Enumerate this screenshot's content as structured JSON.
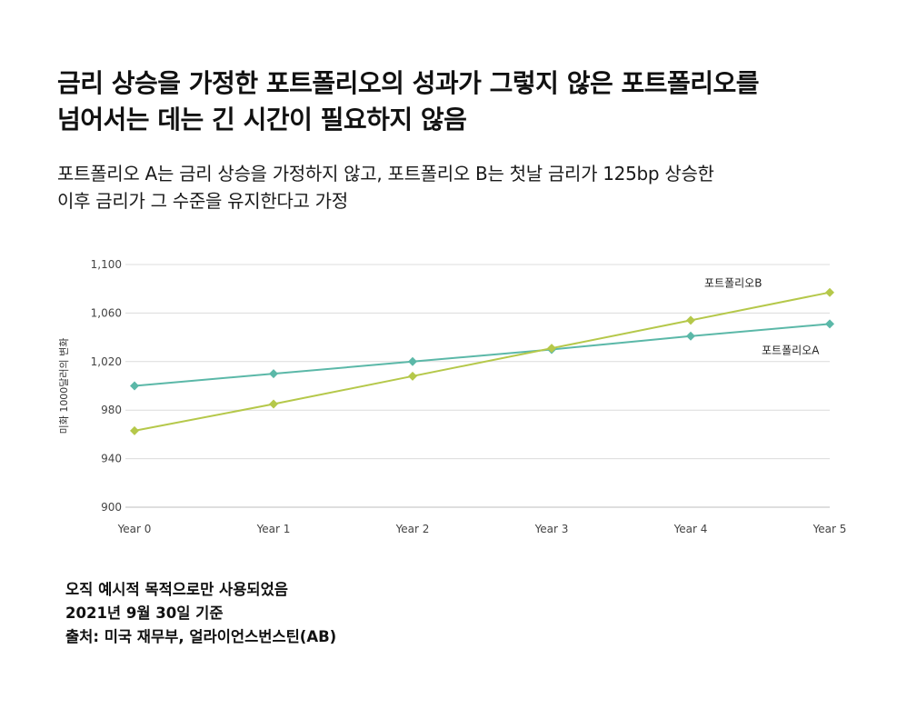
{
  "header": {
    "title_line1": "금리 상승을 가정한 포트폴리오의 성과가 그렇지 않은 포트폴리오를",
    "title_line2": "넘어서는 데는 긴 시간이 필요하지 않음",
    "subtitle_line1": "포트폴리오 A는 금리 상승을 가정하지 않고, 포트폴리오 B는 첫날 금리가 125bp 상승한",
    "subtitle_line2": "이후 금리가 그 수준을 유지한다고 가정"
  },
  "chart_data": {
    "type": "line",
    "title": "",
    "xlabel": "",
    "ylabel": "미화 1000달러의 변화",
    "categories": [
      "Year 0",
      "Year 1",
      "Year 2",
      "Year 3",
      "Year 4",
      "Year 5"
    ],
    "ylim": [
      900,
      1100
    ],
    "yticks": [
      900,
      940,
      980,
      1020,
      1060,
      1100
    ],
    "ytick_labels": [
      "900",
      "940",
      "980",
      "1,020",
      "1,060",
      "1,100"
    ],
    "grid": true,
    "series": [
      {
        "name": "포트폴리오A",
        "color": "#5bb8a8",
        "marker": "diamond",
        "values": [
          1000,
          1010,
          1020,
          1030,
          1041,
          1051
        ]
      },
      {
        "name": "포트폴리오B",
        "color": "#b5c84a",
        "marker": "diamond",
        "values": [
          963,
          985,
          1008,
          1031,
          1054,
          1077
        ]
      }
    ]
  },
  "footer": {
    "note": "오직 예시적 목적으로만 사용되었음",
    "date": "2021년 9월 30일 기준",
    "source": "출처: 미국 재무부, 얼라이언스번스틴(AB)"
  }
}
